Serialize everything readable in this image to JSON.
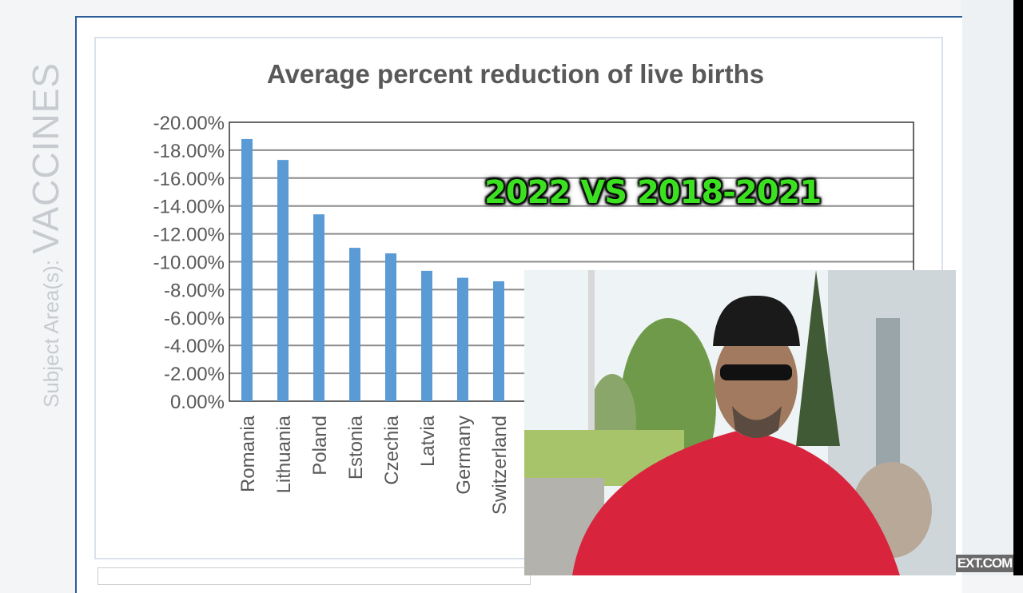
{
  "sidebar": {
    "label_prefix": "Subject Area(s): ",
    "label_topic": "VACCINES"
  },
  "overlay_text": "2022 VS 2018-2021",
  "watermark": "EXT.COM",
  "chart_data": {
    "type": "bar",
    "title": "Average percent reduction of live births",
    "categories": [
      "Romania",
      "Lithuania",
      "Poland",
      "Estonia",
      "Czechia",
      "Latvia",
      "Germany",
      "Switzerland"
    ],
    "values": [
      -18.8,
      -17.3,
      -13.4,
      -11.0,
      -10.6,
      -9.35,
      -8.85,
      -8.6
    ],
    "ylim": [
      0,
      -20
    ],
    "yticks": [
      "0.00%",
      "-2.00%",
      "-4.00%",
      "-6.00%",
      "-8.00%",
      "-10.00%",
      "-12.00%",
      "-14.00%",
      "-16.00%",
      "-18.00%",
      "-20.00%"
    ],
    "grid": true,
    "bar_color": "#5b9bd5"
  }
}
